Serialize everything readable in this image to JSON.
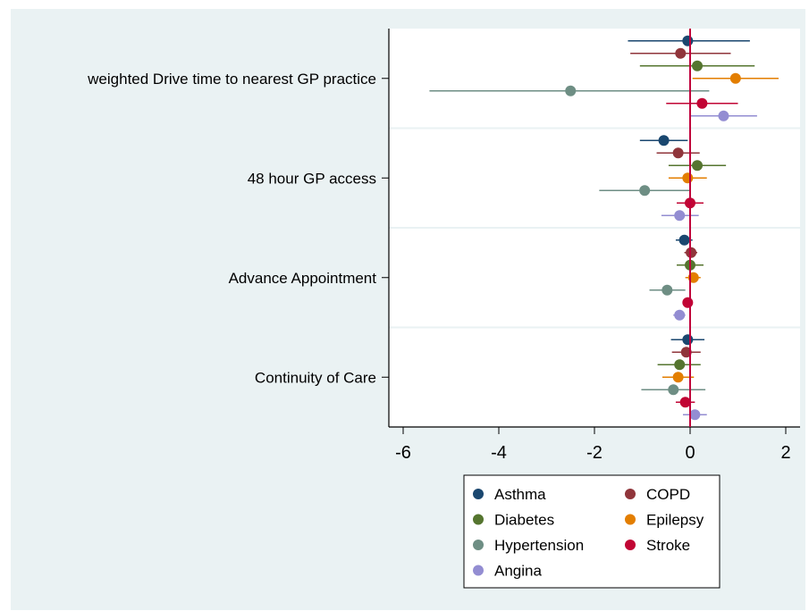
{
  "chart_data": {
    "type": "scatter",
    "subtype": "coefficient-plot-with-confidence-intervals",
    "categories": [
      "weighted Drive time to nearest GP practice",
      "48 hour GP access",
      "Advance Appointment",
      "Continuity of Care"
    ],
    "xlim": [
      -6.3,
      2.3
    ],
    "xticks": [
      "-6",
      "-4",
      "-2",
      "0",
      "2"
    ],
    "xtick_values": [
      -6,
      -4,
      -2,
      0,
      2
    ],
    "reference_line_x": 0,
    "reference_line_color": "#c0003c",
    "grid": "horizontal separators between categories",
    "legend": {
      "placement": "bottom",
      "columns": 2
    },
    "series": [
      {
        "name": "Asthma",
        "color": "#1a476f",
        "estimates": [
          -0.05,
          -0.55,
          -0.12,
          -0.05
        ],
        "ci_low": [
          -1.3,
          -1.05,
          -0.3,
          -0.4
        ],
        "ci_high": [
          1.25,
          -0.05,
          0.05,
          0.3
        ]
      },
      {
        "name": "COPD",
        "color": "#90353b",
        "estimates": [
          -0.2,
          -0.25,
          0.02,
          -0.08
        ],
        "ci_low": [
          -1.25,
          -0.7,
          -0.12,
          -0.38
        ],
        "ci_high": [
          0.85,
          0.2,
          0.15,
          0.22
        ]
      },
      {
        "name": "Diabetes",
        "color": "#55752f",
        "estimates": [
          0.15,
          0.15,
          0.0,
          -0.22
        ],
        "ci_low": [
          -1.05,
          -0.45,
          -0.28,
          -0.68
        ],
        "ci_high": [
          1.35,
          0.75,
          0.28,
          0.22
        ]
      },
      {
        "name": "Epilepsy",
        "color": "#e37e00",
        "estimates": [
          0.95,
          -0.05,
          0.07,
          -0.25
        ],
        "ci_low": [
          0.05,
          -0.45,
          -0.1,
          -0.58
        ],
        "ci_high": [
          1.85,
          0.35,
          0.22,
          0.08
        ]
      },
      {
        "name": "Hypertension",
        "color": "#6e8e84",
        "estimates": [
          -2.5,
          -0.95,
          -0.48,
          -0.35
        ],
        "ci_low": [
          -5.45,
          -1.9,
          -0.85,
          -1.02
        ],
        "ci_high": [
          0.4,
          0.0,
          -0.1,
          0.32
        ]
      },
      {
        "name": "Stroke",
        "color": "#c10534",
        "estimates": [
          0.25,
          0.0,
          -0.05,
          -0.1
        ],
        "ci_low": [
          -0.5,
          -0.28,
          -0.15,
          -0.3
        ],
        "ci_high": [
          1.0,
          0.28,
          0.05,
          0.1
        ]
      },
      {
        "name": "Angina",
        "color": "#938dd2",
        "estimates": [
          0.7,
          -0.22,
          -0.22,
          0.1
        ],
        "ci_low": [
          0.0,
          -0.6,
          -0.35,
          -0.15
        ],
        "ci_high": [
          1.4,
          0.18,
          -0.1,
          0.35
        ]
      }
    ]
  }
}
